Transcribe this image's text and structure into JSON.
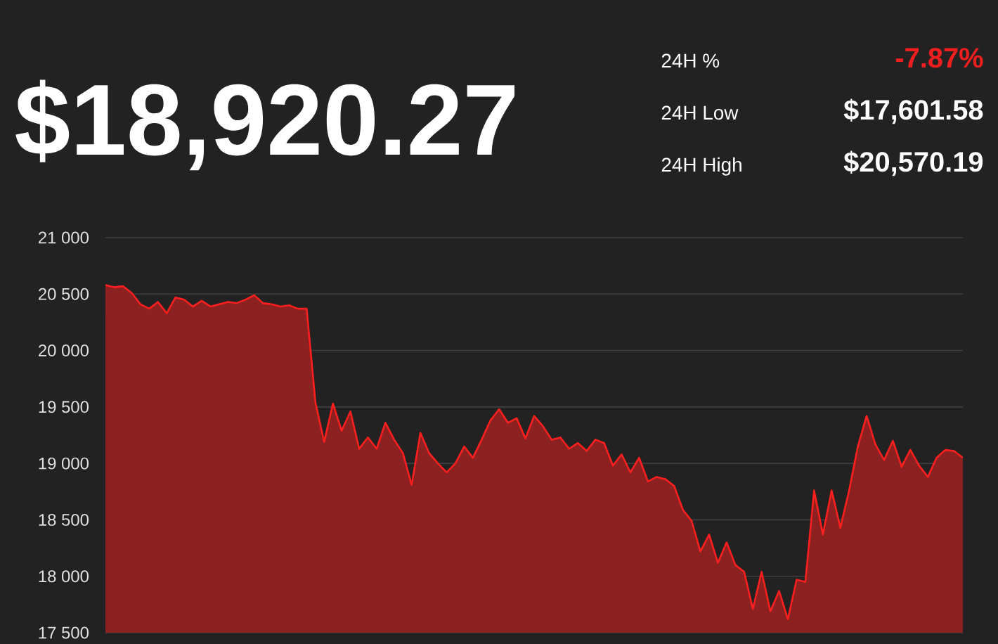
{
  "chart_data": {
    "type": "area",
    "title": "$18,920.27",
    "annotations": [
      "24H %",
      "-7.87%",
      "24H Low",
      "$17,601.58",
      "24H High",
      "$20,570.19"
    ],
    "categories": [
      null,
      null,
      null,
      null,
      null,
      null,
      null,
      null,
      null,
      null,
      null,
      null,
      null,
      null,
      null,
      null,
      null,
      null,
      null,
      null,
      null,
      null,
      null,
      null,
      null,
      null,
      null,
      null,
      null,
      null,
      null,
      null,
      null,
      null,
      null,
      null,
      null,
      null,
      null,
      null,
      null,
      null,
      null,
      null,
      null,
      null,
      null,
      null,
      null,
      null,
      null,
      null,
      null,
      null,
      null,
      null,
      null,
      null,
      null,
      null,
      null,
      null,
      null,
      null,
      null,
      null,
      null,
      null,
      null,
      null,
      null,
      null,
      null,
      null,
      null,
      null,
      null,
      null,
      null,
      null,
      null,
      null,
      null,
      null,
      null,
      null,
      null,
      null,
      null,
      null,
      null,
      null,
      null,
      null,
      null,
      null,
      null,
      null,
      null
    ],
    "series": [
      {
        "color": "#ff1f1f",
        "values": [
          20580,
          20560,
          20570,
          20510,
          20410,
          20370,
          20430,
          20330,
          20470,
          20450,
          20390,
          20440,
          20390,
          20410,
          20430,
          20420,
          20450,
          20490,
          20420,
          20410,
          20390,
          20400,
          20370,
          20370,
          19540,
          19190,
          19530,
          19290,
          19460,
          19130,
          19230,
          19130,
          19360,
          19210,
          19090,
          18810,
          19270,
          19090,
          19000,
          18920,
          19000,
          19150,
          19050,
          19210,
          19380,
          19480,
          19360,
          19400,
          19220,
          19420,
          19330,
          19210,
          19230,
          19130,
          19180,
          19110,
          19210,
          19180,
          18980,
          19080,
          18920,
          19050,
          18840,
          18880,
          18860,
          18800,
          18590,
          18490,
          18220,
          18370,
          18120,
          18300,
          18100,
          18040,
          17710,
          18040,
          17690,
          17870,
          17620,
          17970,
          17950,
          18760,
          18370,
          18760,
          18430,
          18760,
          19150,
          19420,
          19170,
          19030,
          19200,
          18970,
          19120,
          18980,
          18880,
          19050,
          19120,
          19110,
          19050
        ]
      }
    ],
    "ylim": [
      17500,
      21000
    ],
    "yticks": [
      {
        "value": 17500,
        "label": "17 500"
      },
      {
        "value": 18000,
        "label": "18 000"
      },
      {
        "value": 18500,
        "label": "18 500"
      },
      {
        "value": 19000,
        "label": "19 000"
      },
      {
        "value": 19500,
        "label": "19 500"
      },
      {
        "value": 20000,
        "label": "20 000"
      },
      {
        "value": 20500,
        "label": "20 500"
      },
      {
        "value": 21000,
        "label": "21 000"
      }
    ],
    "tick_labels": "y",
    "grid": "y"
  }
}
